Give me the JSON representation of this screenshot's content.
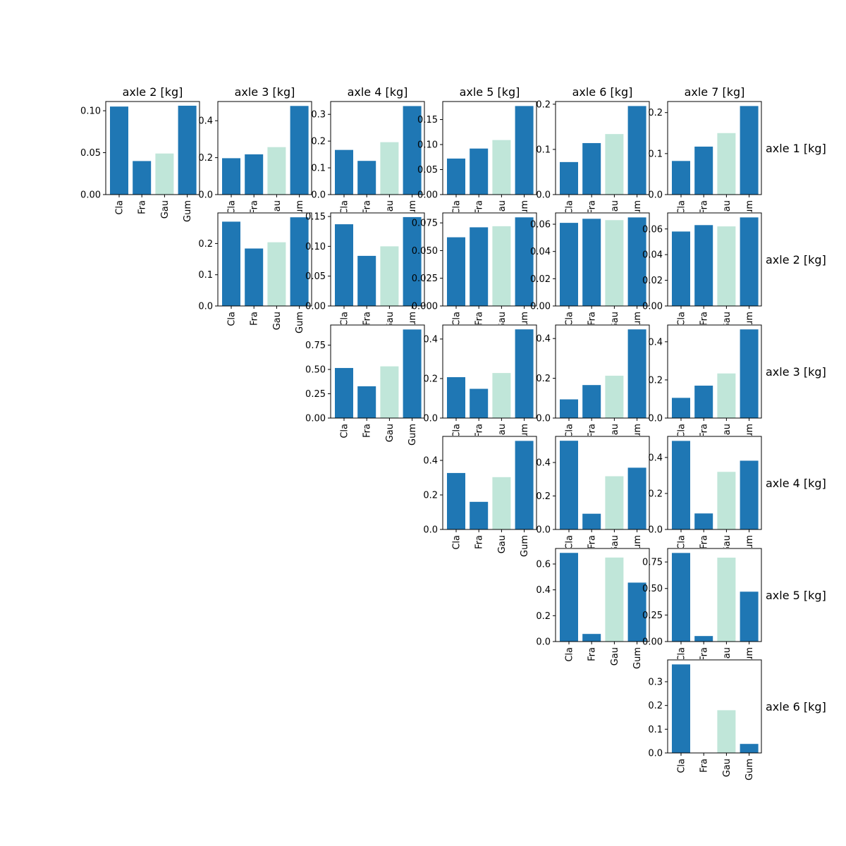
{
  "figure": {
    "column_titles": [
      "axle 2 [kg]",
      "axle 3 [kg]",
      "axle 4 [kg]",
      "axle 5 [kg]",
      "axle 6 [kg]",
      "axle 7 [kg]"
    ],
    "row_labels": [
      "axle 1 [kg]",
      "axle 2 [kg]",
      "axle 3 [kg]",
      "axle 4 [kg]",
      "axle 5 [kg]",
      "axle 6 [kg]"
    ]
  },
  "colors": {
    "bar": "#1f77b4",
    "highlight_bar": "#c0e6d9",
    "axis": "#000000",
    "background": "#ffffff"
  },
  "chart_data": [
    {
      "type": "bar",
      "row": 0,
      "col": 0,
      "categories": [
        "Cla",
        "Fra",
        "Gau",
        "Gum"
      ],
      "values": [
        0.105,
        0.04,
        0.049,
        0.106
      ],
      "highlight_index": 2,
      "ylim": [
        0,
        0.111
      ],
      "yticks": [
        "0.00",
        "0.05",
        "0.10"
      ],
      "show_x_labels": true
    },
    {
      "type": "bar",
      "row": 0,
      "col": 1,
      "categories": [
        "Cla",
        "Fra",
        "Gau",
        "Gum"
      ],
      "values": [
        0.197,
        0.218,
        0.257,
        0.48
      ],
      "highlight_index": 2,
      "ylim": [
        0,
        0.504
      ],
      "yticks": [
        "0.0",
        "0.2",
        "0.4"
      ],
      "show_x_labels": false
    },
    {
      "type": "bar",
      "row": 0,
      "col": 2,
      "categories": [
        "Cla",
        "Fra",
        "Gau",
        "Gum"
      ],
      "values": [
        0.167,
        0.126,
        0.196,
        0.331
      ],
      "highlight_index": 2,
      "ylim": [
        0,
        0.348
      ],
      "yticks": [
        "0.0",
        "0.1",
        "0.2",
        "0.3"
      ],
      "show_x_labels": false
    },
    {
      "type": "bar",
      "row": 0,
      "col": 3,
      "categories": [
        "Cla",
        "Fra",
        "Gau",
        "Gum"
      ],
      "values": [
        0.072,
        0.092,
        0.109,
        0.177
      ],
      "highlight_index": 2,
      "ylim": [
        0,
        0.186
      ],
      "yticks": [
        "0.00",
        "0.05",
        "0.10",
        "0.15"
      ],
      "show_x_labels": false
    },
    {
      "type": "bar",
      "row": 0,
      "col": 4,
      "categories": [
        "Cla",
        "Fra",
        "Gau",
        "Gum"
      ],
      "values": [
        0.072,
        0.114,
        0.134,
        0.196
      ],
      "highlight_index": 2,
      "ylim": [
        0,
        0.206
      ],
      "yticks": [
        "0.0",
        "0.1",
        "0.2"
      ],
      "show_x_labels": false
    },
    {
      "type": "bar",
      "row": 0,
      "col": 5,
      "categories": [
        "Cla",
        "Fra",
        "Gau",
        "Gum"
      ],
      "values": [
        0.082,
        0.117,
        0.15,
        0.216
      ],
      "highlight_index": 2,
      "ylim": [
        0,
        0.227
      ],
      "yticks": [
        "0.0",
        "0.1",
        "0.2"
      ],
      "show_x_labels": false
    },
    {
      "type": "bar",
      "row": 1,
      "col": 1,
      "categories": [
        "Cla",
        "Fra",
        "Gau",
        "Gum"
      ],
      "values": [
        0.27,
        0.184,
        0.204,
        0.284
      ],
      "highlight_index": 2,
      "ylim": [
        0,
        0.298
      ],
      "yticks": [
        "0.0",
        "0.1",
        "0.2"
      ],
      "show_x_labels": true
    },
    {
      "type": "bar",
      "row": 1,
      "col": 2,
      "categories": [
        "Cla",
        "Fra",
        "Gau",
        "Gum"
      ],
      "values": [
        0.137,
        0.084,
        0.1,
        0.149
      ],
      "highlight_index": 2,
      "ylim": [
        0,
        0.156
      ],
      "yticks": [
        "0.00",
        "0.05",
        "0.10",
        "0.15"
      ],
      "show_x_labels": false
    },
    {
      "type": "bar",
      "row": 1,
      "col": 3,
      "categories": [
        "Cla",
        "Fra",
        "Gau",
        "Gum"
      ],
      "values": [
        0.062,
        0.071,
        0.072,
        0.08
      ],
      "highlight_index": 2,
      "ylim": [
        0,
        0.084
      ],
      "yticks": [
        "0.000",
        "0.025",
        "0.050",
        "0.075"
      ],
      "show_x_labels": false
    },
    {
      "type": "bar",
      "row": 1,
      "col": 4,
      "categories": [
        "Cla",
        "Fra",
        "Gau",
        "Gum"
      ],
      "values": [
        0.061,
        0.064,
        0.063,
        0.065
      ],
      "highlight_index": 2,
      "ylim": [
        0,
        0.0683
      ],
      "yticks": [
        "0.00",
        "0.02",
        "0.04",
        "0.06"
      ],
      "show_x_labels": false
    },
    {
      "type": "bar",
      "row": 1,
      "col": 5,
      "categories": [
        "Cla",
        "Fra",
        "Gau",
        "Gum"
      ],
      "values": [
        0.058,
        0.063,
        0.062,
        0.069
      ],
      "highlight_index": 2,
      "ylim": [
        0,
        0.0725
      ],
      "yticks": [
        "0.00",
        "0.02",
        "0.04",
        "0.06"
      ],
      "show_x_labels": false
    },
    {
      "type": "bar",
      "row": 2,
      "col": 2,
      "categories": [
        "Cla",
        "Fra",
        "Gau",
        "Gum"
      ],
      "values": [
        0.515,
        0.327,
        0.532,
        0.911
      ],
      "highlight_index": 2,
      "ylim": [
        0,
        0.957
      ],
      "yticks": [
        "0.00",
        "0.25",
        "0.50",
        "0.75"
      ],
      "show_x_labels": true
    },
    {
      "type": "bar",
      "row": 2,
      "col": 3,
      "categories": [
        "Cla",
        "Fra",
        "Gau",
        "Gum"
      ],
      "values": [
        0.207,
        0.148,
        0.228,
        0.449
      ],
      "highlight_index": 2,
      "ylim": [
        0,
        0.471
      ],
      "yticks": [
        "0.0",
        "0.2",
        "0.4"
      ],
      "show_x_labels": false
    },
    {
      "type": "bar",
      "row": 2,
      "col": 4,
      "categories": [
        "Cla",
        "Fra",
        "Gau",
        "Gum"
      ],
      "values": [
        0.094,
        0.166,
        0.213,
        0.446
      ],
      "highlight_index": 2,
      "ylim": [
        0,
        0.468
      ],
      "yticks": [
        "0.0",
        "0.2",
        "0.4"
      ],
      "show_x_labels": false
    },
    {
      "type": "bar",
      "row": 2,
      "col": 5,
      "categories": [
        "Cla",
        "Fra",
        "Gau",
        "Gum"
      ],
      "values": [
        0.106,
        0.17,
        0.234,
        0.465
      ],
      "highlight_index": 2,
      "ylim": [
        0,
        0.488
      ],
      "yticks": [
        "0.0",
        "0.2",
        "0.4"
      ],
      "show_x_labels": false
    },
    {
      "type": "bar",
      "row": 3,
      "col": 3,
      "categories": [
        "Cla",
        "Fra",
        "Gau",
        "Gum"
      ],
      "values": [
        0.327,
        0.16,
        0.303,
        0.513
      ],
      "highlight_index": 2,
      "ylim": [
        0,
        0.539
      ],
      "yticks": [
        "0.0",
        "0.2",
        "0.4"
      ],
      "show_x_labels": true
    },
    {
      "type": "bar",
      "row": 3,
      "col": 4,
      "categories": [
        "Cla",
        "Fra",
        "Gau",
        "Gum"
      ],
      "values": [
        0.53,
        0.094,
        0.318,
        0.369
      ],
      "highlight_index": 2,
      "ylim": [
        0,
        0.556
      ],
      "yticks": [
        "0.0",
        "0.2",
        "0.4"
      ],
      "show_x_labels": false
    },
    {
      "type": "bar",
      "row": 3,
      "col": 5,
      "categories": [
        "Cla",
        "Fra",
        "Gau",
        "Gum"
      ],
      "values": [
        0.492,
        0.089,
        0.32,
        0.382
      ],
      "highlight_index": 2,
      "ylim": [
        0,
        0.517
      ],
      "yticks": [
        "0.0",
        "0.2",
        "0.4"
      ],
      "show_x_labels": false
    },
    {
      "type": "bar",
      "row": 4,
      "col": 4,
      "categories": [
        "Cla",
        "Fra",
        "Gau",
        "Gum"
      ],
      "values": [
        0.686,
        0.059,
        0.65,
        0.456
      ],
      "highlight_index": 2,
      "ylim": [
        0,
        0.72
      ],
      "yticks": [
        "0.0",
        "0.2",
        "0.4",
        "0.6"
      ],
      "show_x_labels": true
    },
    {
      "type": "bar",
      "row": 4,
      "col": 5,
      "categories": [
        "Cla",
        "Fra",
        "Gau",
        "Gum"
      ],
      "values": [
        0.835,
        0.052,
        0.791,
        0.47
      ],
      "highlight_index": 2,
      "ylim": [
        0,
        0.877
      ],
      "yticks": [
        "0.00",
        "0.25",
        "0.50",
        "0.75"
      ],
      "show_x_labels": false
    },
    {
      "type": "bar",
      "row": 5,
      "col": 5,
      "categories": [
        "Cla",
        "Fra",
        "Gau",
        "Gum"
      ],
      "values": [
        0.373,
        0.0,
        0.18,
        0.038
      ],
      "highlight_index": 2,
      "ylim": [
        0,
        0.392
      ],
      "yticks": [
        "0.0",
        "0.1",
        "0.2",
        "0.3"
      ],
      "show_x_labels": true
    }
  ]
}
